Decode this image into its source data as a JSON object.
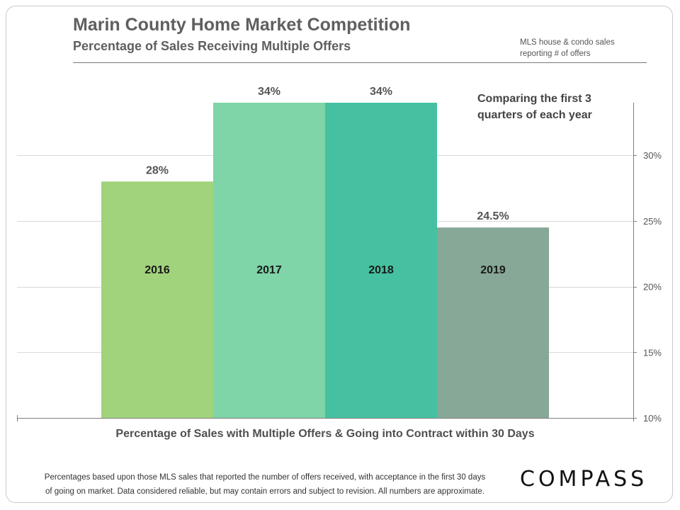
{
  "header": {
    "title": "Marin County Home Market Competition",
    "subtitle": "Percentage of Sales Receiving Multiple Offers",
    "note_line1": "MLS house & condo sales",
    "note_line2": "reporting # of offers"
  },
  "chart_data": {
    "type": "bar",
    "title": "Marin County Home Market Competition",
    "subtitle": "Percentage of Sales Receiving Multiple Offers",
    "categories": [
      "2016",
      "2017",
      "2018",
      "2019"
    ],
    "values": [
      28,
      34,
      34,
      24.5
    ],
    "value_labels": [
      "28%",
      "34%",
      "34%",
      "24.5%"
    ],
    "colors": [
      "#a1d37c",
      "#7fd4a8",
      "#45c1a1",
      "#87a897"
    ],
    "xlabel": "Percentage of Sales with Multiple Offers & Going into Contract within 30 Days",
    "ylabel": "",
    "ylim": [
      10,
      34
    ],
    "yticks": [
      10,
      15,
      20,
      25,
      30
    ],
    "ytick_labels": [
      "10%",
      "15%",
      "20%",
      "25%",
      "30%"
    ],
    "y_axis_side": "right",
    "grid": true,
    "annotation": "Comparing the first 3 quarters of each year"
  },
  "annotation": {
    "line1": "Comparing the first 3",
    "line2": "quarters of each year"
  },
  "footer": {
    "line1": "Percentages based upon those MLS sales that reported the number of offers received, with acceptance in the first 30 days",
    "line2": "of going on market. Data considered reliable, but may contain errors and subject to revision.  All numbers are approximate.",
    "brand": "COMPASS"
  }
}
